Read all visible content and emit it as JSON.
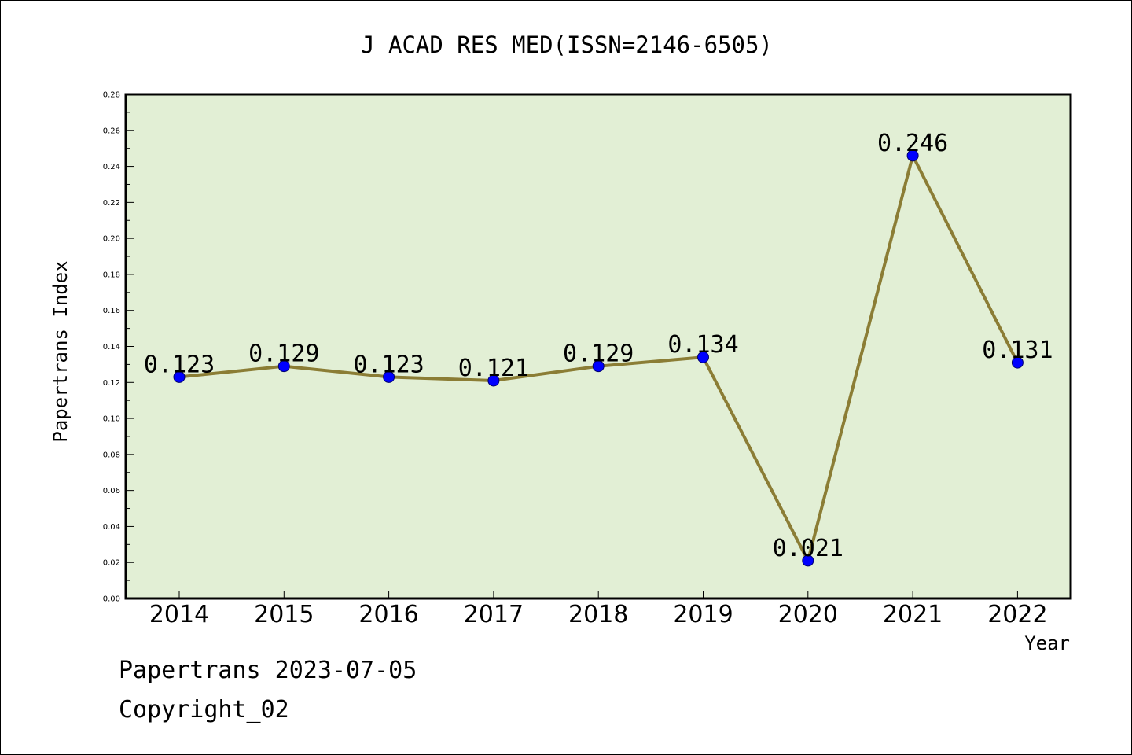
{
  "chart_data": {
    "type": "line",
    "title": "J ACAD RES MED(ISSN=2146-6505)",
    "xlabel": "Year",
    "ylabel": "Papertrans Index",
    "categories": [
      "2014",
      "2015",
      "2016",
      "2017",
      "2018",
      "2019",
      "2020",
      "2021",
      "2022"
    ],
    "series": [
      {
        "values": [
          0.123,
          0.129,
          0.123,
          0.121,
          0.129,
          0.134,
          0.021,
          0.246,
          0.131
        ],
        "data_labels": [
          "0.123",
          "0.129",
          "0.123",
          "0.121",
          "0.129",
          "0.134",
          "0.021",
          "0.246",
          "0.131"
        ]
      }
    ],
    "ylim": [
      0,
      0.28
    ],
    "y_ticks": [
      "0.00",
      "0.02",
      "0.04",
      "0.06",
      "0.08",
      "0.10",
      "0.12",
      "0.14",
      "0.16",
      "0.18",
      "0.20",
      "0.22",
      "0.24",
      "0.26",
      "0.28"
    ],
    "grid": false,
    "colors": {
      "plot_background": "#e2efd5",
      "line": "#8b7d35",
      "marker": "#0000ff",
      "marker_edge": "#00006e"
    }
  },
  "footer": {
    "line1": "Papertrans 2023-07-05",
    "line2": "Copyright_02"
  }
}
